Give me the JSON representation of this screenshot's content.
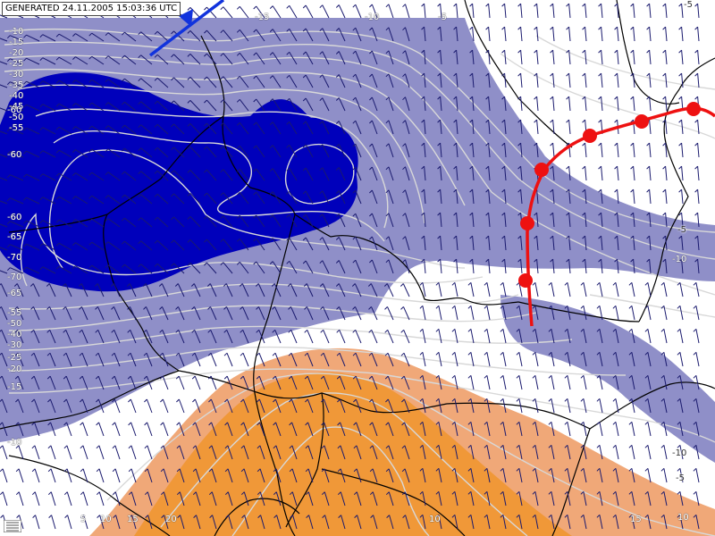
{
  "map": {
    "generated_stamp": "GENERATED 24.11.2005 15:03:36 UTC",
    "colors": {
      "cold_deep": "#0000bb",
      "cold_light": "#8f8fc8",
      "warm_light": "#f0a878",
      "warm_deep": "#f09838",
      "contour": "#d8d8d8",
      "border": "#000000",
      "wind_barb": "#1a1a6e",
      "warm_front": "#ee1111",
      "cold_front": "#1133dd"
    },
    "contour_labels": [
      {
        "id": "c1",
        "text": "-10"
      },
      {
        "id": "c2",
        "text": "-15"
      },
      {
        "id": "c3",
        "text": "-20"
      },
      {
        "id": "c4",
        "text": "-25"
      },
      {
        "id": "c5",
        "text": "-30"
      },
      {
        "id": "c6",
        "text": "-35"
      },
      {
        "id": "c7",
        "text": "-40"
      },
      {
        "id": "c8",
        "text": "-45"
      },
      {
        "id": "c9",
        "text": "-50"
      },
      {
        "id": "c10",
        "text": "-55"
      },
      {
        "id": "c11",
        "text": "-60"
      },
      {
        "id": "c12",
        "text": "-60"
      },
      {
        "id": "c13",
        "text": "-60"
      },
      {
        "id": "c14",
        "text": "-65"
      },
      {
        "id": "c15",
        "text": "-70"
      },
      {
        "id": "c16",
        "text": "-70"
      },
      {
        "id": "c17",
        "text": "-65"
      },
      {
        "id": "c18",
        "text": "-55"
      },
      {
        "id": "c19",
        "text": "-50"
      },
      {
        "id": "c20",
        "text": "-40"
      },
      {
        "id": "c21",
        "text": "-30"
      },
      {
        "id": "c22",
        "text": "-25"
      },
      {
        "id": "c23",
        "text": "-20"
      },
      {
        "id": "c24",
        "text": "-15"
      },
      {
        "id": "c25",
        "text": "-10"
      },
      {
        "id": "c26",
        "text": "-15"
      },
      {
        "id": "c27",
        "text": "-10"
      },
      {
        "id": "c28",
        "text": "-5"
      },
      {
        "id": "c29",
        "text": "-5"
      },
      {
        "id": "c30",
        "text": "-5"
      },
      {
        "id": "c31",
        "text": "-10"
      },
      {
        "id": "c32",
        "text": "-10"
      },
      {
        "id": "c33",
        "text": "-5"
      },
      {
        "id": "c34",
        "text": "5"
      },
      {
        "id": "c35",
        "text": "10"
      },
      {
        "id": "c36",
        "text": "15"
      },
      {
        "id": "c37",
        "text": "20"
      },
      {
        "id": "c38",
        "text": "10"
      },
      {
        "id": "c39",
        "text": "15"
      },
      {
        "id": "c40",
        "text": "10"
      }
    ]
  }
}
